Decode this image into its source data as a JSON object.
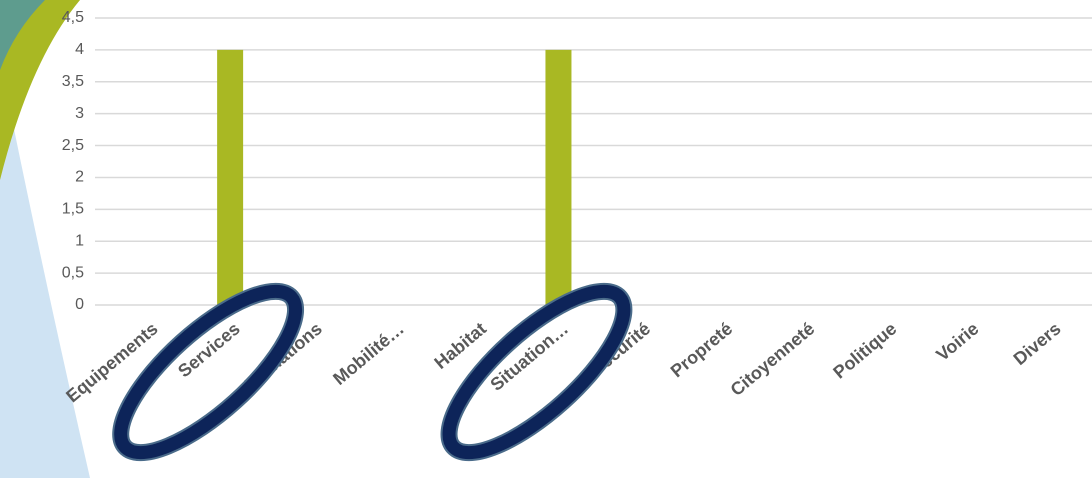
{
  "chart_data": {
    "type": "bar",
    "categories": [
      "Equipements",
      "Services",
      "Animations",
      "Mobilité…",
      "Habitat",
      "Situation…",
      "Sécurité",
      "Propreté",
      "Citoyenneté",
      "Politique",
      "Voirie",
      "Divers"
    ],
    "values": [
      0,
      4,
      0,
      0,
      0,
      4,
      0,
      0,
      0,
      0,
      0,
      0
    ],
    "color": "#a9b823",
    "ylim": [
      0,
      4.5
    ],
    "yticks": [
      0,
      {
        "value": 0.5,
        "label": "0,5"
      },
      1,
      {
        "value": 1.5,
        "label": "1,5"
      },
      2,
      {
        "value": 2.5,
        "label": "2,5"
      },
      3,
      {
        "value": 3.5,
        "label": "3,5"
      },
      4,
      {
        "value": 4.5,
        "label": "4,5"
      }
    ],
    "grid": true
  }
}
